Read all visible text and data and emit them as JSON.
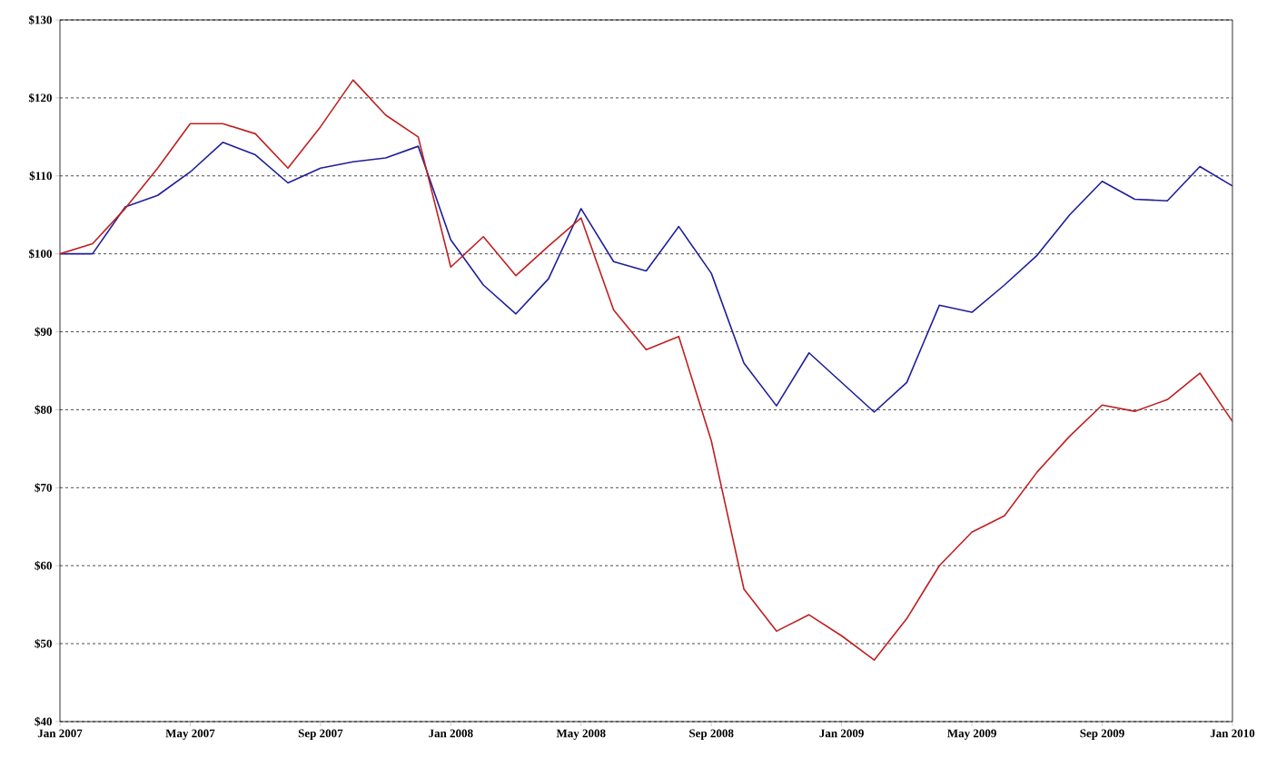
{
  "chart_data": {
    "type": "line",
    "x": [
      "2007-01",
      "2007-02",
      "2007-03",
      "2007-04",
      "2007-05",
      "2007-06",
      "2007-07",
      "2007-08",
      "2007-09",
      "2007-10",
      "2007-11",
      "2007-12",
      "2008-01",
      "2008-02",
      "2008-03",
      "2008-04",
      "2008-05",
      "2008-06",
      "2008-07",
      "2008-08",
      "2008-09",
      "2008-10",
      "2008-11",
      "2008-12",
      "2009-01",
      "2009-02",
      "2009-03",
      "2009-04",
      "2009-05",
      "2009-06",
      "2009-07",
      "2009-08",
      "2009-09",
      "2009-10",
      "2009-11",
      "2009-12",
      "2010-01"
    ],
    "series": [
      {
        "color": "#1f1f9a",
        "values": [
          100,
          100,
          106,
          107.5,
          110.5,
          114.3,
          112.7,
          109.1,
          111,
          111.8,
          112.3,
          113.8,
          101.8,
          96,
          92.3,
          96.8,
          105.8,
          99,
          97.8,
          103.5,
          97.5,
          86,
          80.5,
          87.3,
          83.5,
          79.7,
          83.5,
          93.4,
          92.5,
          96,
          99.8,
          105,
          109.3,
          107,
          106.8,
          111.2,
          108.7
        ]
      },
      {
        "color": "#c02020",
        "values": [
          100,
          101.3,
          105.8,
          111,
          116.7,
          116.7,
          115.4,
          111,
          116.3,
          122.3,
          117.8,
          115,
          98.3,
          102.2,
          97.2,
          101,
          104.6,
          92.8,
          87.7,
          89.4,
          76,
          57,
          51.6,
          53.7,
          51,
          47.9,
          53.2,
          60,
          64.3,
          66.4,
          72,
          76.6,
          80.6,
          79.8,
          81.3,
          84.7,
          78.5
        ]
      }
    ],
    "xlim": [
      "2007-01",
      "2010-01"
    ],
    "xticks": [
      {
        "value": "2007-01",
        "label": "Jan 2007"
      },
      {
        "value": "2007-05",
        "label": "May 2007"
      },
      {
        "value": "2007-09",
        "label": "Sep 2007"
      },
      {
        "value": "2008-01",
        "label": "Jan 2008"
      },
      {
        "value": "2008-05",
        "label": "May 2008"
      },
      {
        "value": "2008-09",
        "label": "Sep 2008"
      },
      {
        "value": "2009-01",
        "label": "Jan 2009"
      },
      {
        "value": "2009-05",
        "label": "May 2009"
      },
      {
        "value": "2009-09",
        "label": "Sep 2009"
      },
      {
        "value": "2010-01",
        "label": "Jan 2010"
      }
    ],
    "ylim": [
      40,
      130
    ],
    "yticks": [
      {
        "value": 40,
        "label": "$40"
      },
      {
        "value": 50,
        "label": "$50"
      },
      {
        "value": 60,
        "label": "$60"
      },
      {
        "value": 70,
        "label": "$70"
      },
      {
        "value": 80,
        "label": "$80"
      },
      {
        "value": 90,
        "label": "$90"
      },
      {
        "value": 100,
        "label": "$100"
      },
      {
        "value": 110,
        "label": "$110"
      },
      {
        "value": 120,
        "label": "$120"
      },
      {
        "value": 130,
        "label": "$130"
      }
    ],
    "grid": "y",
    "line_style": "solid"
  }
}
